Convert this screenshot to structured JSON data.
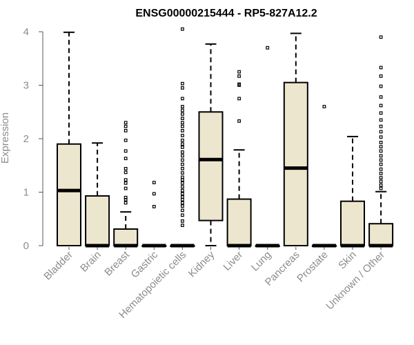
{
  "chart_data": {
    "type": "boxplot",
    "title": "ENSG00000215444 - RP5-827A12.2",
    "xlabel": "",
    "ylabel": "Expression",
    "ylim": [
      0,
      4
    ],
    "yticks": [
      "0",
      "1",
      "2",
      "3",
      "4"
    ],
    "colors": {
      "box_fill": "#ede6cf",
      "box_stroke": "#000000",
      "median": "#000000",
      "axis_text": "#8c8c8c"
    },
    "categories": [
      "Bladder",
      "Brain",
      "Breast",
      "Gastric",
      "Hematopoietic cells",
      "Kidney",
      "Liver",
      "Lung",
      "Pancreas",
      "Prostate",
      "Skin",
      "Unknown / Other"
    ],
    "boxes": [
      {
        "name": "Bladder",
        "whisker_low": 0,
        "q1": 0,
        "median": 1.03,
        "q3": 1.9,
        "whisker_high": 3.99,
        "outliers": []
      },
      {
        "name": "Brain",
        "whisker_low": 0,
        "q1": 0,
        "median": 0,
        "q3": 0.93,
        "whisker_high": 1.92,
        "outliers": []
      },
      {
        "name": "Breast",
        "whisker_low": 0,
        "q1": 0,
        "median": 0,
        "q3": 0.31,
        "whisker_high": 0.63,
        "outliers": [
          0.8,
          0.86,
          0.9,
          1.07,
          1.17,
          1.23,
          1.37,
          1.44,
          1.63,
          1.77,
          1.97,
          2.15,
          2.23,
          2.3
        ]
      },
      {
        "name": "Gastric",
        "whisker_low": 0,
        "q1": 0,
        "median": 0,
        "q3": 0,
        "whisker_high": 0,
        "outliers": [
          0.73,
          0.97,
          1.18
        ]
      },
      {
        "name": "Hematopoietic cells",
        "whisker_low": 0,
        "q1": 0,
        "median": 0,
        "q3": 0,
        "whisker_high": 0,
        "outliers": [
          0.38,
          0.46,
          0.57,
          0.66,
          0.74,
          0.8,
          0.86,
          0.91,
          0.97,
          1.03,
          1.1,
          1.17,
          1.23,
          1.28,
          1.36,
          1.44,
          1.52,
          1.6,
          1.68,
          1.75,
          1.84,
          1.9,
          1.97,
          2.06,
          2.15,
          2.23,
          2.3,
          2.38,
          2.46,
          2.53,
          2.6,
          2.75,
          2.95,
          3.03,
          4.05
        ]
      },
      {
        "name": "Kidney",
        "whisker_low": 0,
        "q1": 0.47,
        "median": 1.61,
        "q3": 2.5,
        "whisker_high": 3.77,
        "outliers": []
      },
      {
        "name": "Liver",
        "whisker_low": 0,
        "q1": 0,
        "median": 0,
        "q3": 0.87,
        "whisker_high": 1.79,
        "outliers": [
          2.33,
          2.75,
          3.0,
          3.02,
          3.17,
          3.25
        ]
      },
      {
        "name": "Lung",
        "whisker_low": 0,
        "q1": 0,
        "median": 0,
        "q3": 0,
        "whisker_high": 0,
        "outliers": [
          3.7
        ]
      },
      {
        "name": "Pancreas",
        "whisker_low": 0,
        "q1": 0,
        "median": 1.45,
        "q3": 3.05,
        "whisker_high": 3.97,
        "outliers": []
      },
      {
        "name": "Prostate",
        "whisker_low": 0,
        "q1": 0,
        "median": 0,
        "q3": 0,
        "whisker_high": 0,
        "outliers": [
          2.6
        ]
      },
      {
        "name": "Skin",
        "whisker_low": 0,
        "q1": 0,
        "median": 0,
        "q3": 0.83,
        "whisker_high": 2.04,
        "outliers": []
      },
      {
        "name": "Unknown / Other",
        "whisker_low": 0,
        "q1": 0,
        "median": 0,
        "q3": 0.41,
        "whisker_high": 1.01,
        "outliers": [
          1.07,
          1.13,
          1.2,
          1.27,
          1.35,
          1.43,
          1.52,
          1.6,
          1.68,
          1.77,
          1.85,
          1.93,
          2.03,
          2.13,
          2.23,
          2.35,
          2.48,
          2.62,
          2.78,
          2.98,
          3.17,
          3.33,
          3.9
        ]
      }
    ]
  }
}
